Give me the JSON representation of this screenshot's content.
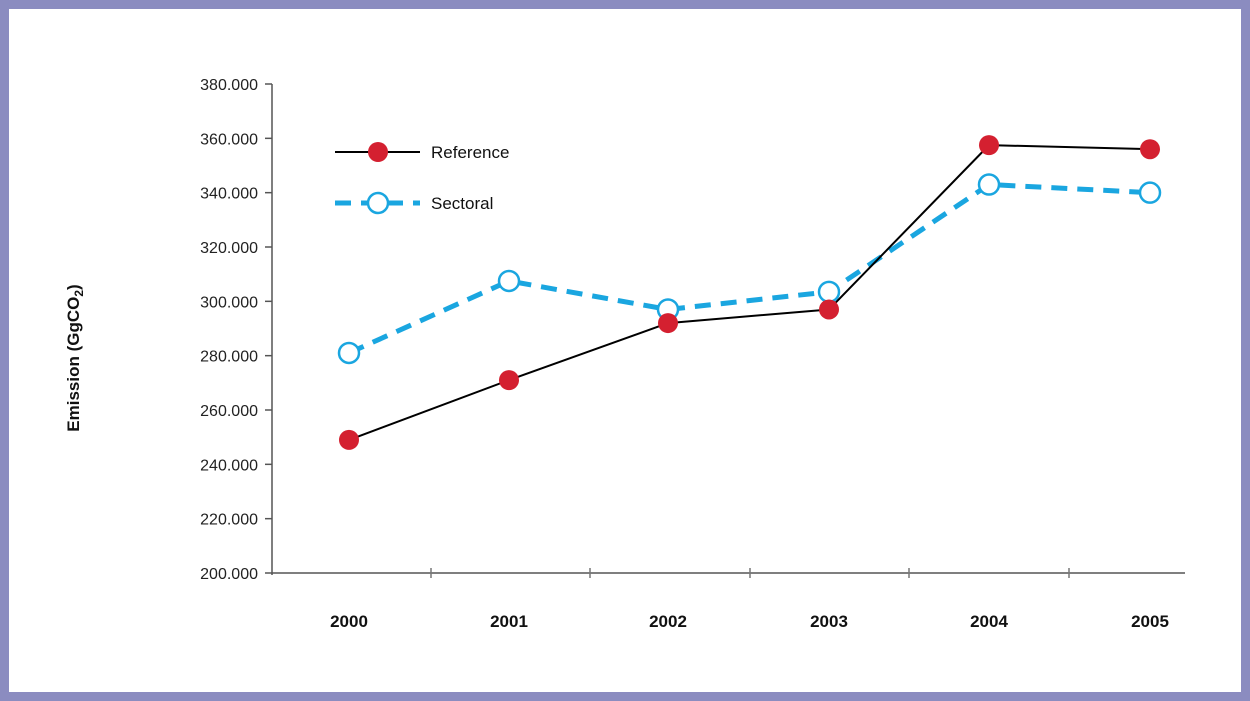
{
  "chart_data": {
    "type": "line",
    "title": "",
    "xlabel": "",
    "ylabel": "Emission (GgCO",
    "ylabel_subscript": "2",
    "ylabel_close": ")",
    "x": [
      "2000",
      "2001",
      "2002",
      "2003",
      "2004",
      "2005"
    ],
    "ylim": [
      200000,
      380000
    ],
    "yticks": [
      "200.000",
      "220.000",
      "240.000",
      "260.000",
      "280.000",
      "300.000",
      "320.000",
      "340.000",
      "360.000",
      "380.000"
    ],
    "ytick_values": [
      200000,
      220000,
      240000,
      260000,
      280000,
      300000,
      320000,
      340000,
      360000,
      380000
    ],
    "grid": false,
    "legend_position": "top-left",
    "series": [
      {
        "name": "Reference",
        "values": [
          249000,
          271000,
          292000,
          297000,
          357500,
          356000
        ],
        "color": "#000000",
        "marker_color": "#d42030",
        "style": "solid",
        "marker": "filled-circle"
      },
      {
        "name": "Sectoral",
        "values": [
          281000,
          307500,
          297000,
          303500,
          343000,
          340000
        ],
        "color": "#1aa6e0",
        "marker_color": "#1aa6e0",
        "style": "dashed",
        "marker": "open-circle"
      }
    ]
  }
}
